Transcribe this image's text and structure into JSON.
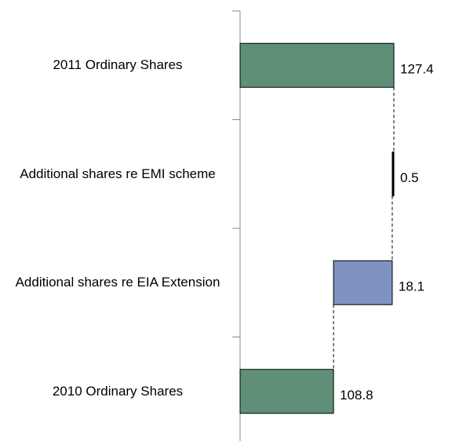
{
  "chart_data": {
    "type": "waterfall",
    "categories": [
      "2011 Ordinary Shares",
      "Additional shares re EMI scheme",
      "Additional shares re EIA Extension",
      "2010 Ordinary Shares"
    ],
    "values": [
      127.4,
      0.5,
      18.1,
      108.8
    ],
    "measure": [
      "total",
      "relative",
      "relative",
      "total"
    ],
    "colors": [
      "#5f9077",
      "#000000",
      "#7f93c0",
      "#5f9077"
    ],
    "xlim": [
      80,
      130
    ]
  }
}
